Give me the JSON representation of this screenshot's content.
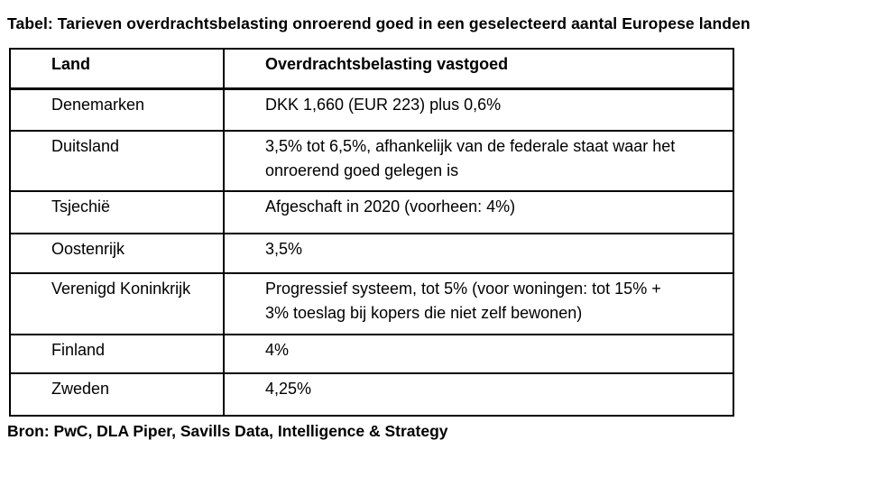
{
  "page": {
    "background_color": "#ffffff",
    "text_color": "#000000",
    "border_color": "#000000"
  },
  "title": "Tabel: Tarieven overdrachtsbelasting onroerend goed in een geselecteerd aantal Europese landen",
  "table": {
    "headers": {
      "land": "Land",
      "tax": "Overdrachtsbelasting vastgoed"
    },
    "rows": [
      {
        "land": "Denemarken",
        "value": "DKK 1,660 (EUR 223) plus 0,6%"
      },
      {
        "land": "Duitsland",
        "value": "3,5% tot 6,5%, afhankelijk van de federale staat waar het\nonroerend goed gelegen is"
      },
      {
        "land": "Tsjechië",
        "value": "Afgeschaft in 2020 (voorheen: 4%)"
      },
      {
        "land": "Oostenrijk",
        "value": "3,5%"
      },
      {
        "land": "Verenigd Koninkrijk",
        "value": "Progressief systeem, tot 5% (voor woningen: tot 15% +\n3% toeslag bij kopers die niet zelf bewonen)"
      },
      {
        "land": "Finland",
        "value": "4%"
      },
      {
        "land": "Zweden",
        "value": "4,25%"
      }
    ]
  },
  "source": "Bron: PwC, DLA Piper, Savills Data, Intelligence & Strategy"
}
